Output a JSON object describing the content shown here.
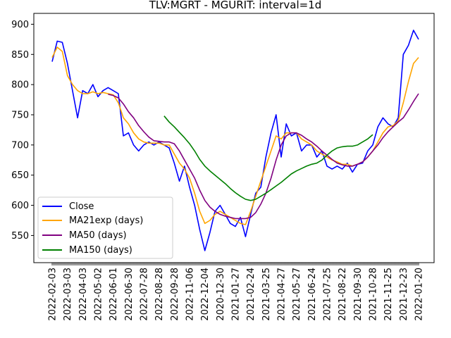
{
  "chart_data": {
    "type": "line",
    "title": "TLV:MGRT - MGURIT: interval=1d",
    "xlabel": "",
    "ylabel": "",
    "ylim": [
      505,
      918
    ],
    "y_ticks": [
      550,
      600,
      650,
      700,
      750,
      800,
      850,
      900
    ],
    "x_tick_labels": [
      "2022-02-03",
      "2022-03-03",
      "2022-04-03",
      "2022-05-02",
      "2022-06-01",
      "2022-06-30",
      "2022-07-28",
      "2022-08-28",
      "2022-09-28",
      "2022-11-06",
      "2022-12-04",
      "2020-12-30",
      "2021-01-27",
      "2021-02-24",
      "2021-03-25",
      "2021-04-27",
      "2021-05-27",
      "2021-06-24",
      "2021-07-25",
      "2021-08-22",
      "2021-09-30",
      "2021-10-28",
      "2021-11-25",
      "2021-12-23",
      "2022-01-20"
    ],
    "grid": false,
    "legend_position": "lower-left",
    "series": [
      {
        "name": "Close",
        "color": "#0000ff",
        "points": [
          [
            0,
            838
          ],
          [
            1,
            872
          ],
          [
            2,
            870
          ],
          [
            3,
            835
          ],
          [
            4,
            790
          ],
          [
            5,
            745
          ],
          [
            6,
            790
          ],
          [
            7,
            785
          ],
          [
            8,
            800
          ],
          [
            9,
            780
          ],
          [
            10,
            790
          ],
          [
            11,
            795
          ],
          [
            12,
            790
          ],
          [
            13,
            785
          ],
          [
            14,
            715
          ],
          [
            15,
            720
          ],
          [
            16,
            700
          ],
          [
            17,
            690
          ],
          [
            18,
            700
          ],
          [
            19,
            705
          ],
          [
            20,
            700
          ],
          [
            21,
            705
          ],
          [
            22,
            700
          ],
          [
            23,
            695
          ],
          [
            24,
            670
          ],
          [
            25,
            640
          ],
          [
            26,
            665
          ],
          [
            27,
            630
          ],
          [
            28,
            600
          ],
          [
            29,
            560
          ],
          [
            30,
            525
          ],
          [
            31,
            555
          ],
          [
            32,
            590
          ],
          [
            33,
            600
          ],
          [
            34,
            585
          ],
          [
            35,
            570
          ],
          [
            36,
            565
          ],
          [
            37,
            580
          ],
          [
            38,
            548
          ],
          [
            39,
            585
          ],
          [
            40,
            620
          ],
          [
            41,
            630
          ],
          [
            42,
            680
          ],
          [
            43,
            720
          ],
          [
            44,
            750
          ],
          [
            45,
            680
          ],
          [
            46,
            735
          ],
          [
            47,
            715
          ],
          [
            48,
            720
          ],
          [
            49,
            690
          ],
          [
            50,
            700
          ],
          [
            51,
            700
          ],
          [
            52,
            680
          ],
          [
            53,
            690
          ],
          [
            54,
            665
          ],
          [
            55,
            660
          ],
          [
            56,
            665
          ],
          [
            57,
            660
          ],
          [
            58,
            670
          ],
          [
            59,
            655
          ],
          [
            60,
            668
          ],
          [
            61,
            670
          ],
          [
            62,
            690
          ],
          [
            63,
            700
          ],
          [
            64,
            730
          ],
          [
            65,
            745
          ],
          [
            66,
            735
          ],
          [
            67,
            730
          ],
          [
            68,
            745
          ],
          [
            69,
            850
          ],
          [
            70,
            865
          ],
          [
            71,
            890
          ],
          [
            72,
            875
          ]
        ]
      },
      {
        "name": "MA21exp (days)",
        "color": "#ffa500",
        "points": [
          [
            0,
            845
          ],
          [
            1,
            862
          ],
          [
            2,
            855
          ],
          [
            3,
            815
          ],
          [
            4,
            800
          ],
          [
            5,
            790
          ],
          [
            6,
            785
          ],
          [
            7,
            785
          ],
          [
            8,
            788
          ],
          [
            9,
            785
          ],
          [
            10,
            787
          ],
          [
            11,
            785
          ],
          [
            12,
            783
          ],
          [
            13,
            770
          ],
          [
            14,
            745
          ],
          [
            15,
            735
          ],
          [
            16,
            720
          ],
          [
            17,
            710
          ],
          [
            18,
            705
          ],
          [
            19,
            703
          ],
          [
            20,
            703
          ],
          [
            21,
            703
          ],
          [
            22,
            700
          ],
          [
            23,
            700
          ],
          [
            24,
            685
          ],
          [
            25,
            670
          ],
          [
            26,
            660
          ],
          [
            27,
            645
          ],
          [
            28,
            620
          ],
          [
            29,
            590
          ],
          [
            30,
            570
          ],
          [
            31,
            575
          ],
          [
            32,
            585
          ],
          [
            33,
            590
          ],
          [
            34,
            585
          ],
          [
            35,
            580
          ],
          [
            36,
            575
          ],
          [
            37,
            570
          ],
          [
            38,
            568
          ],
          [
            39,
            590
          ],
          [
            40,
            615
          ],
          [
            41,
            640
          ],
          [
            42,
            665
          ],
          [
            43,
            690
          ],
          [
            44,
            715
          ],
          [
            45,
            710
          ],
          [
            46,
            720
          ],
          [
            47,
            720
          ],
          [
            48,
            720
          ],
          [
            49,
            710
          ],
          [
            50,
            705
          ],
          [
            51,
            700
          ],
          [
            52,
            690
          ],
          [
            53,
            685
          ],
          [
            54,
            680
          ],
          [
            55,
            675
          ],
          [
            56,
            672
          ],
          [
            57,
            668
          ],
          [
            58,
            668
          ],
          [
            59,
            665
          ],
          [
            60,
            668
          ],
          [
            61,
            672
          ],
          [
            62,
            680
          ],
          [
            63,
            690
          ],
          [
            64,
            705
          ],
          [
            65,
            720
          ],
          [
            66,
            730
          ],
          [
            67,
            732
          ],
          [
            68,
            740
          ],
          [
            69,
            770
          ],
          [
            70,
            805
          ],
          [
            71,
            835
          ],
          [
            72,
            845
          ]
        ]
      },
      {
        "name": "MA50 (days)",
        "color": "#800080",
        "points": [
          [
            11,
            784
          ],
          [
            12,
            782
          ],
          [
            13,
            778
          ],
          [
            14,
            768
          ],
          [
            15,
            755
          ],
          [
            16,
            745
          ],
          [
            17,
            732
          ],
          [
            18,
            722
          ],
          [
            19,
            713
          ],
          [
            20,
            707
          ],
          [
            21,
            706
          ],
          [
            22,
            705
          ],
          [
            23,
            705
          ],
          [
            24,
            702
          ],
          [
            25,
            690
          ],
          [
            26,
            675
          ],
          [
            27,
            660
          ],
          [
            28,
            645
          ],
          [
            29,
            625
          ],
          [
            30,
            608
          ],
          [
            31,
            597
          ],
          [
            32,
            590
          ],
          [
            33,
            585
          ],
          [
            34,
            582
          ],
          [
            35,
            580
          ],
          [
            36,
            578
          ],
          [
            37,
            578
          ],
          [
            38,
            578
          ],
          [
            39,
            580
          ],
          [
            40,
            588
          ],
          [
            41,
            602
          ],
          [
            42,
            620
          ],
          [
            43,
            645
          ],
          [
            44,
            675
          ],
          [
            45,
            700
          ],
          [
            46,
            715
          ],
          [
            47,
            720
          ],
          [
            48,
            720
          ],
          [
            49,
            716
          ],
          [
            50,
            710
          ],
          [
            51,
            705
          ],
          [
            52,
            698
          ],
          [
            53,
            690
          ],
          [
            54,
            683
          ],
          [
            55,
            676
          ],
          [
            56,
            670
          ],
          [
            57,
            667
          ],
          [
            58,
            665
          ],
          [
            59,
            665
          ],
          [
            60,
            668
          ],
          [
            61,
            672
          ],
          [
            62,
            680
          ],
          [
            63,
            690
          ],
          [
            64,
            700
          ],
          [
            65,
            712
          ],
          [
            66,
            722
          ],
          [
            67,
            730
          ],
          [
            68,
            738
          ],
          [
            69,
            745
          ],
          [
            70,
            758
          ],
          [
            71,
            772
          ],
          [
            72,
            785
          ]
        ]
      },
      {
        "name": "MA150 (days)",
        "color": "#008000",
        "points": [
          [
            22,
            748
          ],
          [
            23,
            738
          ],
          [
            24,
            730
          ],
          [
            25,
            721
          ],
          [
            26,
            712
          ],
          [
            27,
            702
          ],
          [
            28,
            690
          ],
          [
            29,
            676
          ],
          [
            30,
            665
          ],
          [
            31,
            657
          ],
          [
            32,
            650
          ],
          [
            33,
            643
          ],
          [
            34,
            636
          ],
          [
            35,
            628
          ],
          [
            36,
            621
          ],
          [
            37,
            615
          ],
          [
            38,
            610
          ],
          [
            39,
            608
          ],
          [
            40,
            610
          ],
          [
            41,
            615
          ],
          [
            42,
            620
          ],
          [
            43,
            626
          ],
          [
            44,
            632
          ],
          [
            45,
            638
          ],
          [
            46,
            645
          ],
          [
            47,
            652
          ],
          [
            48,
            657
          ],
          [
            49,
            661
          ],
          [
            50,
            665
          ],
          [
            51,
            668
          ],
          [
            52,
            670
          ],
          [
            53,
            675
          ],
          [
            54,
            683
          ],
          [
            55,
            690
          ],
          [
            56,
            695
          ],
          [
            57,
            697
          ],
          [
            58,
            698
          ],
          [
            59,
            698
          ],
          [
            60,
            700
          ],
          [
            61,
            705
          ],
          [
            62,
            710
          ],
          [
            63,
            717
          ]
        ]
      }
    ]
  }
}
